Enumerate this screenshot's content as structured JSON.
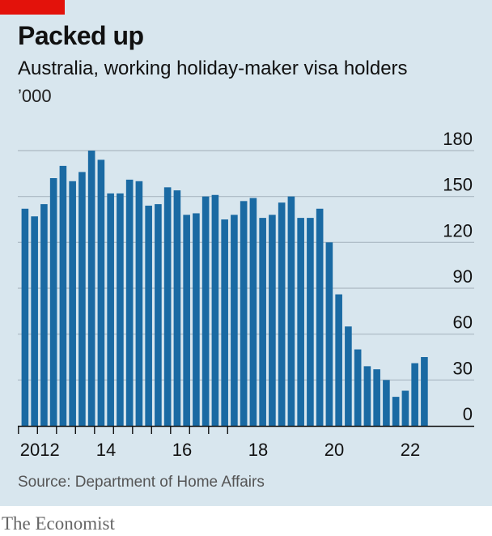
{
  "brand_color": "#e3120b",
  "bar_color": "#1a6aa3",
  "chart_data": {
    "type": "bar",
    "title": "Packed up",
    "subtitle": "Australia, working holiday-maker visa holders",
    "unit": "’000",
    "ylim": [
      0,
      180
    ],
    "y_ticks": [
      0,
      30,
      60,
      90,
      120,
      150,
      180
    ],
    "y_tick_labels": [
      "0",
      "30",
      "60",
      "90",
      "120",
      "150",
      "180"
    ],
    "x_tick_labels": [
      "2012",
      "14",
      "16",
      "18",
      "20",
      "22"
    ],
    "grid": true,
    "values": [
      142,
      137,
      145,
      162,
      170,
      160,
      166,
      180,
      174,
      152,
      152,
      161,
      160,
      144,
      145,
      156,
      154,
      138,
      139,
      150,
      151,
      135,
      138,
      147,
      149,
      136,
      138,
      146,
      150,
      136,
      136,
      142,
      120,
      86,
      65,
      50,
      39,
      37,
      30,
      19,
      23,
      41,
      45
    ]
  },
  "source": "Source: Department of Home Affairs",
  "publisher": "The Economist"
}
